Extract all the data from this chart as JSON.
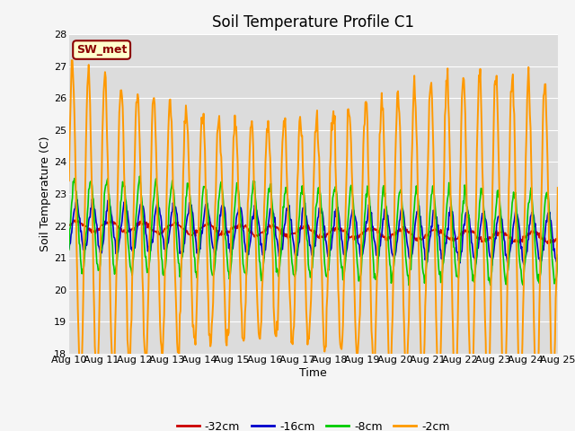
{
  "title": "Soil Temperature Profile C1",
  "xlabel": "Time",
  "ylabel": "Soil Temperature (C)",
  "ylim": [
    18.0,
    28.0
  ],
  "yticks": [
    18.0,
    19.0,
    20.0,
    21.0,
    22.0,
    23.0,
    24.0,
    25.0,
    26.0,
    27.0,
    28.0
  ],
  "xtick_labels": [
    "Aug 10",
    "Aug 11",
    "Aug 12",
    "Aug 13",
    "Aug 14",
    "Aug 15",
    "Aug 16",
    "Aug 17",
    "Aug 18",
    "Aug 19",
    "Aug 20",
    "Aug 21",
    "Aug 22",
    "Aug 23",
    "Aug 24",
    "Aug 25"
  ],
  "series_labels": [
    "-32cm",
    "-16cm",
    "-8cm",
    "-2cm"
  ],
  "series_colors": [
    "#cc0000",
    "#0000cc",
    "#00cc00",
    "#ff9900"
  ],
  "legend_label": "SW_met",
  "legend_bg": "#ffffcc",
  "legend_border": "#cc0000",
  "plot_bg_color": "#dcdcdc",
  "fig_bg_color": "#f5f5f5",
  "grid_color": "#ffffff",
  "title_fontsize": 12,
  "axis_fontsize": 9,
  "tick_fontsize": 8
}
